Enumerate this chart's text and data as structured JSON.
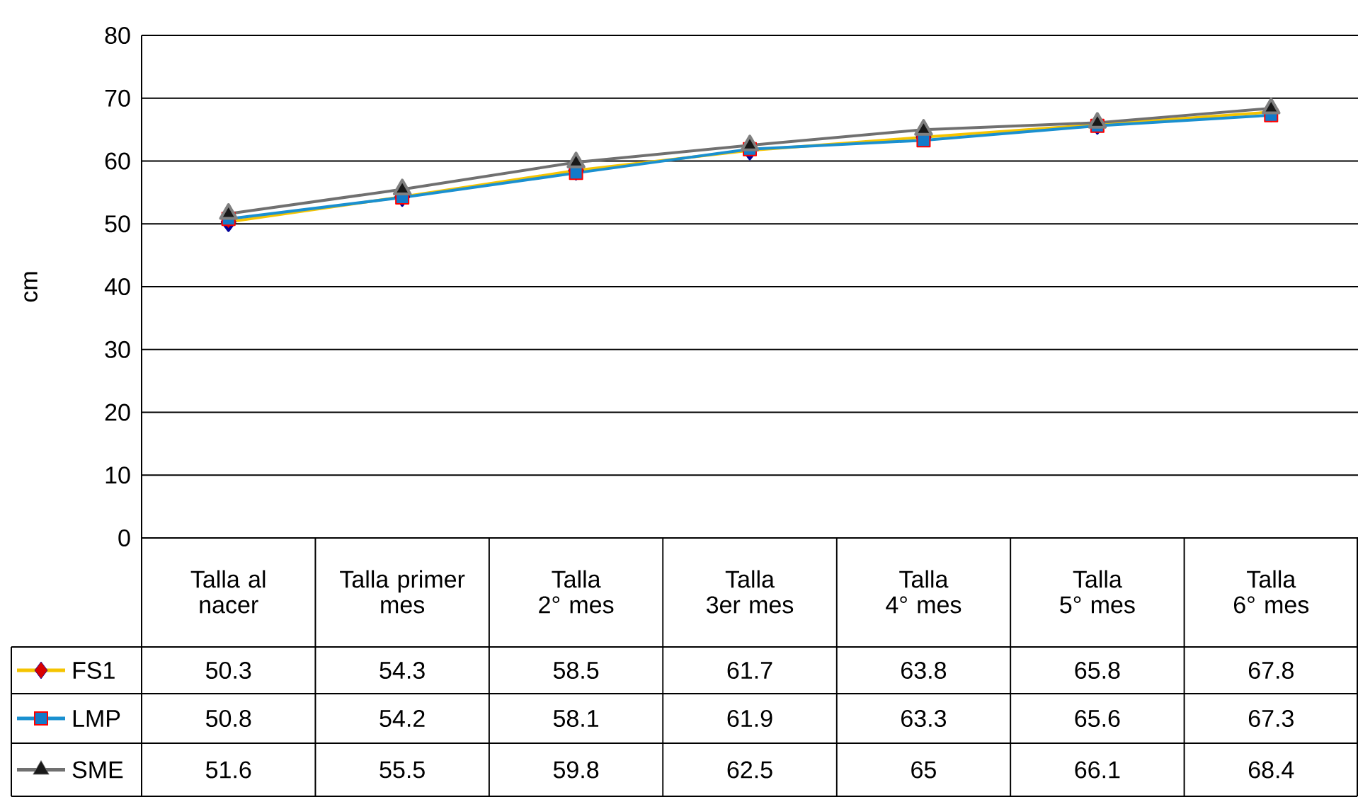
{
  "chart_data": {
    "type": "line",
    "ylabel": "cm",
    "categories": [
      "Talla al nacer",
      "Talla primer mes",
      "Talla 2° mes",
      "Talla 3er mes",
      "Talla 4° mes",
      "Talla 5° mes",
      "Talla 6° mes"
    ],
    "series": [
      {
        "name": "FS1",
        "color": "#f5c400",
        "marker": "diamond",
        "values": [
          50.3,
          54.3,
          58.5,
          61.7,
          63.8,
          65.8,
          67.8
        ]
      },
      {
        "name": "LMP",
        "color": "#1a90d0",
        "marker": "square",
        "values": [
          50.8,
          54.2,
          58.1,
          61.9,
          63.3,
          65.6,
          67.3
        ]
      },
      {
        "name": "SME",
        "color": "#707070",
        "marker": "triangle",
        "values": [
          51.6,
          55.5,
          59.8,
          62.5,
          65,
          66.1,
          68.4
        ]
      }
    ],
    "ylim": [
      0,
      80
    ],
    "yticks": [
      0,
      10,
      20,
      30,
      40,
      50,
      60,
      70,
      80
    ],
    "grid": "y",
    "legend": "bottom left",
    "data_labels": true
  }
}
